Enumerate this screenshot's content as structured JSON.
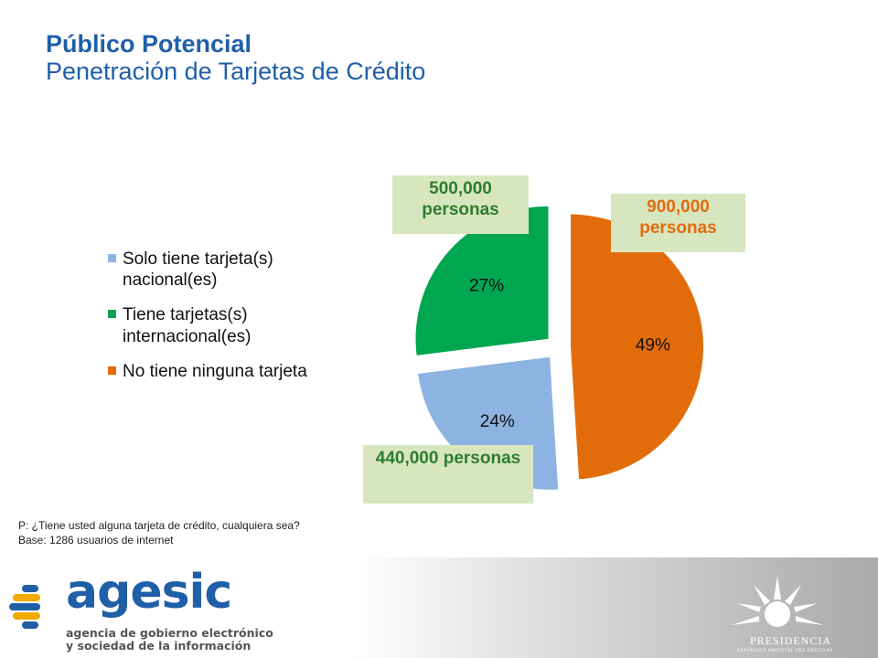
{
  "title": {
    "line1": "Público Potencial",
    "line2": "Penetración de Tarjetas de Crédito"
  },
  "chart_data": {
    "type": "pie",
    "categories": [
      "Solo tiene tarjeta(s) nacional(es)",
      "Tiene tarjetas(s) internacional(es)",
      "No tiene ninguna tarjeta"
    ],
    "values": [
      24,
      27,
      49
    ],
    "labels": [
      "24%",
      "27%",
      "49%"
    ],
    "colors": [
      "#8db3e2",
      "#00a650",
      "#e36c0a"
    ],
    "callouts": [
      "440,000 personas",
      "500,000 personas",
      "900,000 personas"
    ],
    "callout_colors": [
      "#2e7d32",
      "#2e7d32",
      "#e36c0a"
    ],
    "legend": "left"
  },
  "note": {
    "line1": "P: ¿Tiene usted alguna tarjeta de crédito, cualquiera sea?",
    "line2": "Base: 1286 usuarios de internet"
  },
  "footer": {
    "logo": "agesic",
    "logo_sub1": "agencia de gobierno electrónico",
    "logo_sub2": "y sociedad de la información",
    "presidencia": "PRESIDENCIA",
    "presidencia_sub": "REPÚBLICA ORIENTAL DEL URUGUAY"
  }
}
